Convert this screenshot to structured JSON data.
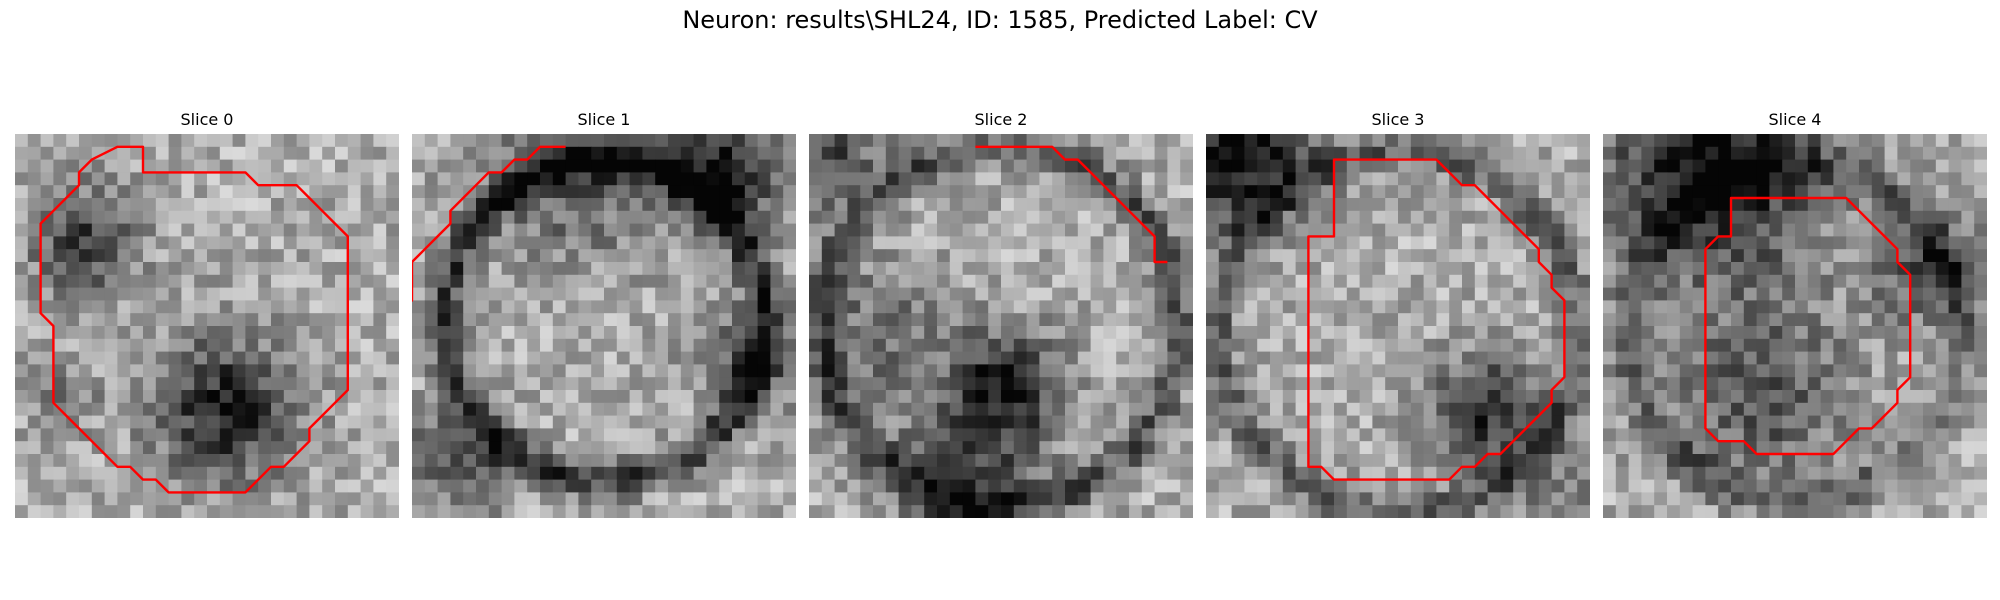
{
  "figure": {
    "title": "Neuron: results\\SHL24, ID: 1585, Predicted Label: CV"
  },
  "panels": [
    {
      "title": "Slice 0",
      "contour": [
        [
          10,
          1
        ],
        [
          8,
          1
        ],
        [
          6,
          2
        ],
        [
          5,
          3
        ],
        [
          5,
          4
        ],
        [
          4,
          5
        ],
        [
          3,
          6
        ],
        [
          2,
          7
        ],
        [
          2,
          8
        ],
        [
          2,
          9
        ],
        [
          2,
          10
        ],
        [
          2,
          11
        ],
        [
          2,
          12
        ],
        [
          2,
          13
        ],
        [
          2,
          14
        ],
        [
          3,
          15
        ],
        [
          3,
          16
        ],
        [
          3,
          17
        ],
        [
          3,
          18
        ],
        [
          3,
          19
        ],
        [
          3,
          20
        ],
        [
          3,
          21
        ],
        [
          4,
          22
        ],
        [
          5,
          23
        ],
        [
          6,
          24
        ],
        [
          7,
          25
        ],
        [
          8,
          26
        ],
        [
          9,
          26
        ],
        [
          10,
          27
        ],
        [
          11,
          27
        ],
        [
          12,
          28
        ],
        [
          13,
          28
        ],
        [
          14,
          28
        ],
        [
          15,
          28
        ],
        [
          16,
          28
        ],
        [
          17,
          28
        ],
        [
          18,
          28
        ],
        [
          19,
          27
        ],
        [
          20,
          26
        ],
        [
          21,
          26
        ],
        [
          22,
          25
        ],
        [
          23,
          24
        ],
        [
          23,
          23
        ],
        [
          24,
          22
        ],
        [
          25,
          21
        ],
        [
          26,
          20
        ],
        [
          26,
          19
        ],
        [
          26,
          18
        ],
        [
          26,
          17
        ],
        [
          26,
          16
        ],
        [
          26,
          15
        ],
        [
          26,
          14
        ],
        [
          26,
          13
        ],
        [
          26,
          12
        ],
        [
          26,
          11
        ],
        [
          26,
          10
        ],
        [
          26,
          9
        ],
        [
          26,
          8
        ],
        [
          25,
          7
        ],
        [
          24,
          6
        ],
        [
          23,
          5
        ],
        [
          22,
          4
        ],
        [
          21,
          4
        ],
        [
          20,
          4
        ],
        [
          19,
          4
        ],
        [
          18,
          3
        ],
        [
          17,
          3
        ],
        [
          16,
          3
        ],
        [
          15,
          3
        ],
        [
          14,
          3
        ],
        [
          13,
          3
        ],
        [
          12,
          3
        ],
        [
          11,
          3
        ],
        [
          10,
          3
        ]
      ]
    },
    {
      "title": "Slice 1",
      "contour": [
        [
          12,
          1
        ],
        [
          11,
          1
        ],
        [
          10,
          1
        ],
        [
          9,
          2
        ],
        [
          8,
          2
        ],
        [
          7,
          3
        ],
        [
          6,
          3
        ],
        [
          5,
          4
        ],
        [
          4,
          5
        ],
        [
          3,
          6
        ],
        [
          3,
          7
        ],
        [
          2,
          8
        ],
        [
          1,
          9
        ],
        [
          0,
          10
        ],
        [
          0,
          11
        ],
        [
          0,
          12
        ],
        [
          0,
          13
        ],
        [
          -0.5,
          13.5
        ]
      ]
    },
    {
      "title": "Slice 2",
      "contour": [
        [
          13,
          1
        ],
        [
          14,
          1
        ],
        [
          15,
          1
        ],
        [
          16,
          1
        ],
        [
          17,
          1
        ],
        [
          18,
          1
        ],
        [
          19,
          1
        ],
        [
          20,
          2
        ],
        [
          21,
          2
        ],
        [
          22,
          3
        ],
        [
          23,
          4
        ],
        [
          24,
          5
        ],
        [
          25,
          6
        ],
        [
          26,
          7
        ],
        [
          27,
          8
        ],
        [
          27,
          9
        ],
        [
          27,
          10
        ],
        [
          28,
          10
        ]
      ]
    },
    {
      "title": "Slice 3",
      "contour": [
        [
          10,
          2
        ],
        [
          11,
          2
        ],
        [
          12,
          2
        ],
        [
          13,
          2
        ],
        [
          14,
          2
        ],
        [
          15,
          2
        ],
        [
          16,
          2
        ],
        [
          17,
          2
        ],
        [
          18,
          2
        ],
        [
          19,
          3
        ],
        [
          20,
          4
        ],
        [
          21,
          4
        ],
        [
          22,
          5
        ],
        [
          23,
          6
        ],
        [
          24,
          7
        ],
        [
          25,
          8
        ],
        [
          26,
          9
        ],
        [
          26,
          10
        ],
        [
          27,
          11
        ],
        [
          27,
          12
        ],
        [
          28,
          13
        ],
        [
          28,
          14
        ],
        [
          28,
          15
        ],
        [
          28,
          16
        ],
        [
          28,
          17
        ],
        [
          28,
          18
        ],
        [
          28,
          19
        ],
        [
          27,
          20
        ],
        [
          27,
          21
        ],
        [
          26,
          22
        ],
        [
          25,
          23
        ],
        [
          24,
          24
        ],
        [
          23,
          25
        ],
        [
          22,
          25
        ],
        [
          21,
          26
        ],
        [
          20,
          26
        ],
        [
          19,
          27
        ],
        [
          18,
          27
        ],
        [
          17,
          27
        ],
        [
          16,
          27
        ],
        [
          15,
          27
        ],
        [
          14,
          27
        ],
        [
          13,
          27
        ],
        [
          12,
          27
        ],
        [
          11,
          27
        ],
        [
          10,
          27
        ],
        [
          9,
          26
        ],
        [
          8,
          26
        ],
        [
          8,
          25
        ],
        [
          8,
          24
        ],
        [
          8,
          23
        ],
        [
          8,
          22
        ],
        [
          8,
          21
        ],
        [
          8,
          20
        ],
        [
          8,
          19
        ],
        [
          8,
          18
        ],
        [
          8,
          17
        ],
        [
          8,
          16
        ],
        [
          8,
          15
        ],
        [
          8,
          14
        ],
        [
          8,
          13
        ],
        [
          8,
          12
        ],
        [
          8,
          11
        ],
        [
          8,
          10
        ],
        [
          8,
          9
        ],
        [
          8,
          8
        ],
        [
          9,
          8
        ],
        [
          10,
          8
        ],
        [
          10,
          7
        ],
        [
          10,
          6
        ],
        [
          10,
          5
        ],
        [
          10,
          4
        ],
        [
          10,
          3
        ]
      ]
    },
    {
      "title": "Slice 4",
      "contour": [
        [
          10,
          5
        ],
        [
          11,
          5
        ],
        [
          12,
          5
        ],
        [
          13,
          5
        ],
        [
          14,
          5
        ],
        [
          15,
          5
        ],
        [
          16,
          5
        ],
        [
          17,
          5
        ],
        [
          18,
          5
        ],
        [
          19,
          5
        ],
        [
          20,
          6
        ],
        [
          21,
          7
        ],
        [
          22,
          8
        ],
        [
          23,
          9
        ],
        [
          23,
          10
        ],
        [
          24,
          11
        ],
        [
          24,
          12
        ],
        [
          24,
          13
        ],
        [
          24,
          14
        ],
        [
          24,
          15
        ],
        [
          24,
          16
        ],
        [
          24,
          17
        ],
        [
          24,
          18
        ],
        [
          24,
          19
        ],
        [
          23,
          20
        ],
        [
          23,
          21
        ],
        [
          22,
          22
        ],
        [
          21,
          23
        ],
        [
          20,
          23
        ],
        [
          19,
          24
        ],
        [
          18,
          25
        ],
        [
          17,
          25
        ],
        [
          16,
          25
        ],
        [
          15,
          25
        ],
        [
          14,
          25
        ],
        [
          13,
          25
        ],
        [
          12,
          25
        ],
        [
          11,
          24
        ],
        [
          10,
          24
        ],
        [
          9,
          24
        ],
        [
          8,
          23
        ],
        [
          8,
          22
        ],
        [
          8,
          21
        ],
        [
          8,
          20
        ],
        [
          8,
          19
        ],
        [
          8,
          18
        ],
        [
          8,
          17
        ],
        [
          8,
          16
        ],
        [
          8,
          15
        ],
        [
          8,
          14
        ],
        [
          8,
          13
        ],
        [
          8,
          12
        ],
        [
          8,
          11
        ],
        [
          8,
          10
        ],
        [
          8,
          9
        ],
        [
          9,
          8
        ],
        [
          10,
          8
        ],
        [
          10,
          7
        ],
        [
          10,
          6
        ]
      ]
    }
  ],
  "colors": {
    "contour": "#ff0000",
    "text": "#000000",
    "background": "#ffffff"
  }
}
